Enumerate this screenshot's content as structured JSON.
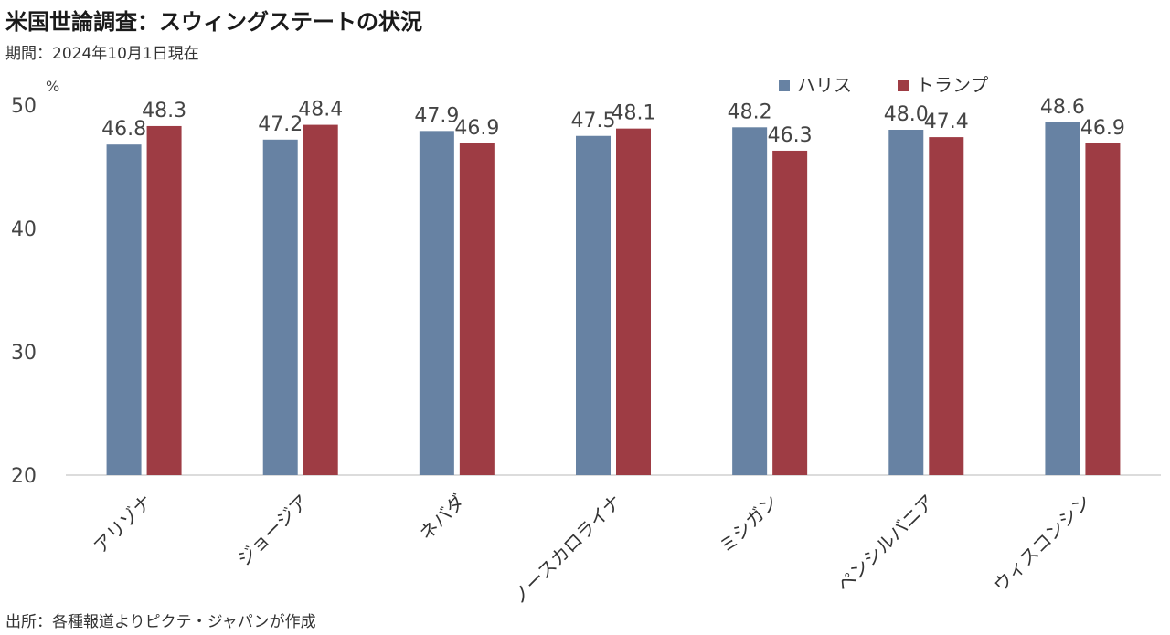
{
  "title": "米国世論調査：スウィングステートの状況",
  "subtitle": "期間：2024年10月1日現在",
  "source": "出所：各種報道よりピクテ・ジャパンが作成",
  "chart_data": {
    "type": "bar",
    "title": "米国世論調査：スウィングステートの状況",
    "subtitle": "期間：2024年10月1日現在",
    "unit": "%",
    "categories": [
      "アリゾナ",
      "ジョージア",
      "ネバダ",
      "ノースカロライナ",
      "ミシガン",
      "ペンシルバニア",
      "ウィスコンシン"
    ],
    "series": [
      {
        "name": "ハリス",
        "color": "#6782a3",
        "values": [
          46.8,
          47.2,
          47.9,
          47.5,
          48.2,
          48.0,
          48.6
        ],
        "labels": [
          "46.8",
          "47.2",
          "47.9",
          "47.5",
          "48.2",
          "48.0",
          "48.6"
        ]
      },
      {
        "name": "トランプ",
        "color": "#9e3c44",
        "values": [
          48.3,
          48.4,
          46.9,
          48.1,
          46.3,
          47.4,
          46.9
        ],
        "labels": [
          "48.3",
          "48.4",
          "46.9",
          "48.1",
          "46.3",
          "47.4",
          "46.9"
        ]
      }
    ],
    "ylim": [
      20,
      50
    ],
    "yticks": [
      "20",
      "30",
      "40",
      "50"
    ],
    "grid": false,
    "legend": "top-right"
  }
}
